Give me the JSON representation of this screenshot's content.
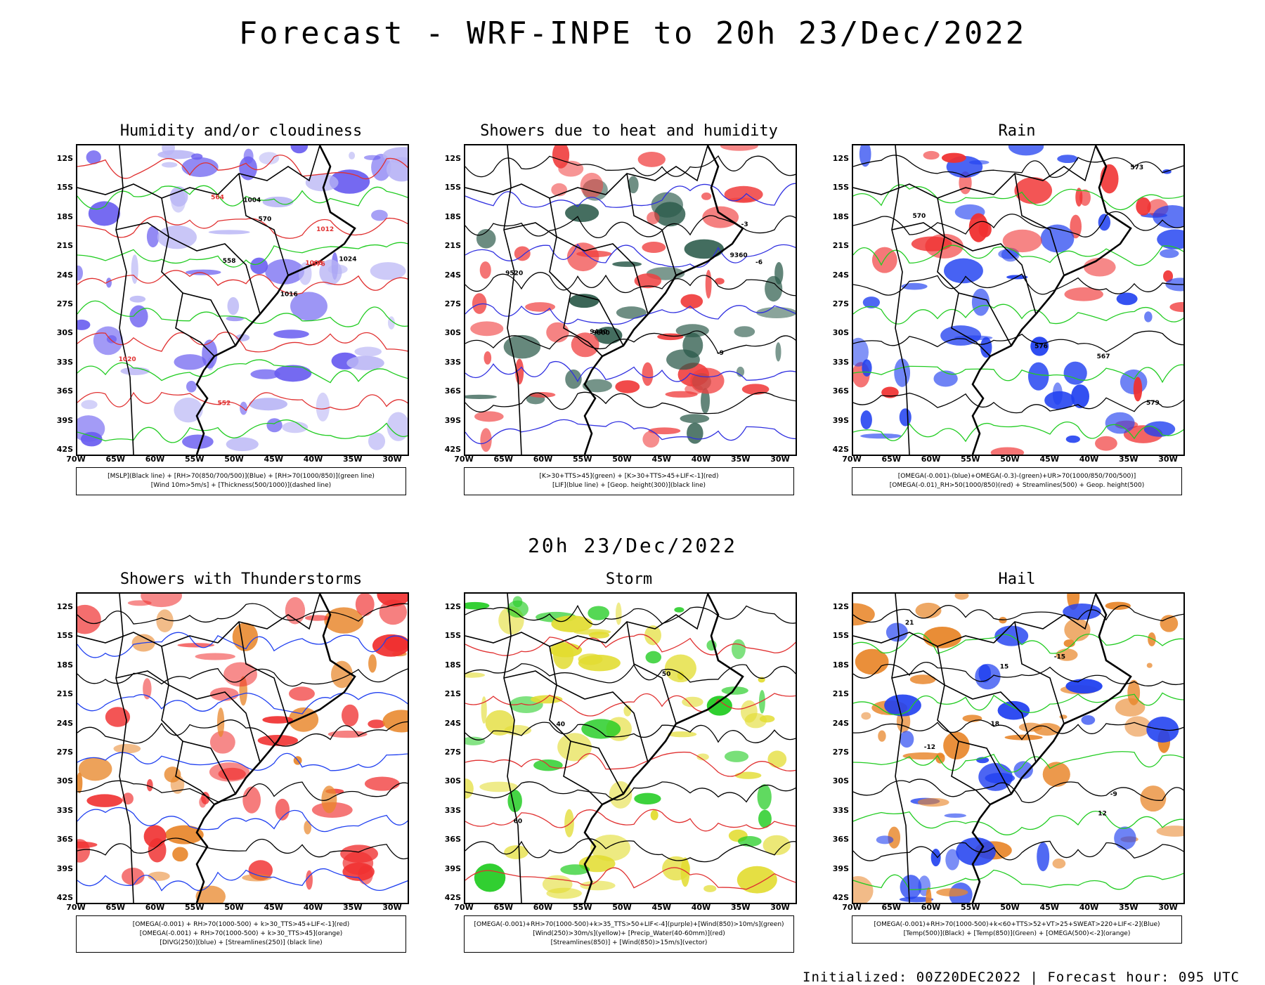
{
  "header": {
    "main_title": "Forecast - WRF-INPE to 20h 23/Dec/2022",
    "mid_title": "20h 23/Dec/2022",
    "footer": "Initialized: 00Z20DEC2022 | Forecast hour: 095 UTC"
  },
  "axes": {
    "lat_ticks": [
      "12S",
      "15S",
      "18S",
      "21S",
      "24S",
      "27S",
      "30S",
      "33S",
      "36S",
      "39S",
      "42S"
    ],
    "lon_ticks": [
      "70W",
      "65W",
      "60W",
      "55W",
      "50W",
      "45W",
      "40W",
      "35W",
      "30W"
    ]
  },
  "panels": [
    {
      "title": "Humidity and/or cloudiness",
      "legend": [
        "[MSLP](Black line) + [RH>70(850/700/500)](Blue) + [RH>70(1000/850)](green line)",
        "[Wind 10m>5m/s] + [Thickness(500/1000)](dashed line)"
      ],
      "labels": [
        "1008",
        "1004",
        "1012",
        "1016",
        "1020",
        "1024",
        "576",
        "570",
        "564",
        "558",
        "552"
      ],
      "colors": {
        "fill_a": "#6a5ef0",
        "fill_b": "#b9b5f5",
        "line_a": "#22cc22",
        "line_b": "#e03030"
      }
    },
    {
      "title": "Showers due to heat and humidity",
      "legend": [
        "[K>30+TTS>45](green) + [K>30+TTS>45+LIF<-1](red)",
        "[LIF](blue line) + [Geop. height(300)](black line)"
      ],
      "labels": [
        "9600",
        "9520",
        "9440",
        "9360",
        "-3",
        "-6",
        "-9"
      ],
      "colors": {
        "fill_a": "#f04040",
        "fill_b": "#2b5a4a",
        "line_a": "#3030e0",
        "line_b": "#000000"
      }
    },
    {
      "title": "Rain",
      "legend": [
        "[OMEGA(-0.001)-(blue)+OMEGA(-0.3)-(green)+UR>70(1000/850/700/500)]",
        "[OMEGA(-0.01)_RH>50(1000/850)(red) + Streamlines(500) + Geop. height(500)"
      ],
      "labels": [
        "579",
        "576",
        "573",
        "570",
        "567"
      ],
      "colors": {
        "fill_a": "#2040f0",
        "fill_b": "#f03030",
        "line_a": "#22cc22",
        "line_b": "#000000"
      }
    },
    {
      "title": "Showers with Thunderstorms",
      "legend": [
        "[OMEGA(-0.001) + RH>70(1000-500) + k>30_TTS>45+LIF<-1](red)",
        "[OMEGA(-0.001) + RH>70(1000-500) + k>30_TTS>45](orange)",
        "[DIVG(250)](blue) + [Streamlines(250)] (black line)"
      ],
      "labels": [],
      "colors": {
        "fill_a": "#f03030",
        "fill_b": "#e8862a",
        "line_a": "#2040f0",
        "line_b": "#000000"
      }
    },
    {
      "title": "Storm",
      "legend": [
        "[OMEGA(-0.001)+RH>70(1000-500)+k>35_TTS>50+LIF<-4](purple)+[Wind(850)>10m/s](green)",
        "[Wind(250)>30m/s](yellow)+ [Precip_Water(40-60mm)](red)",
        "[Streamlines(850)] + [Wind(850)>15m/s](vector)"
      ],
      "labels": [
        "40",
        "50",
        "60"
      ],
      "colors": {
        "fill_a": "#e2dc30",
        "fill_b": "#22cc22",
        "line_a": "#e03030",
        "line_b": "#000000"
      }
    },
    {
      "title": "Hail",
      "legend": [
        "[OMEGA(-0.001)+RH>70(1000-500)+k<60+TTS>52+VT>25+SWEAT>220+LIF<-2](Blue)",
        "[Temp(500)](Black) + [Temp(850)](Green) + [OMEGA(500)<-2](orange)"
      ],
      "labels": [
        "-9",
        "-12",
        "-15",
        "12",
        "15",
        "18",
        "21"
      ],
      "colors": {
        "fill_a": "#e8862a",
        "fill_b": "#2040f0",
        "line_a": "#22cc22",
        "line_b": "#000000"
      }
    }
  ]
}
